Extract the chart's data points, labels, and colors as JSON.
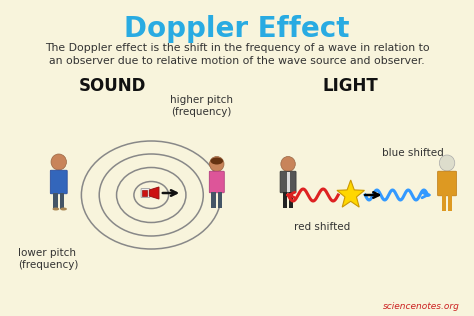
{
  "title": "Doppler Effect",
  "title_color": "#29ABE2",
  "bg_color": "#F8F4DC",
  "description_line1": "The Doppler effect is the shift in the frequency of a wave in relation to",
  "description_line2": "an observer due to relative motion of the wave source and observer.",
  "desc_color": "#333333",
  "sound_label": "SOUND",
  "light_label": "LIGHT",
  "label_color": "#111111",
  "higher_pitch_text": "higher pitch\n(frequency)",
  "lower_pitch_text": "lower pitch\n(frequency)",
  "blue_shifted_text": "blue shifted",
  "red_shifted_text": "red shifted",
  "watermark": "sciencenotes.org",
  "watermark_color": "#CC2222",
  "ellipse_color": "#888888",
  "arrow_color": "#111111",
  "red_wave_color": "#DD2222",
  "blue_wave_color": "#3399FF",
  "star_color": "#FFD700",
  "person_skin": "#C8845A",
  "person_blue_shirt": "#3366BB",
  "person_pink_shirt": "#DD5599",
  "person_dark_pants": "#445566",
  "person_suit": "#555555",
  "person_old_coat": "#DD9922"
}
